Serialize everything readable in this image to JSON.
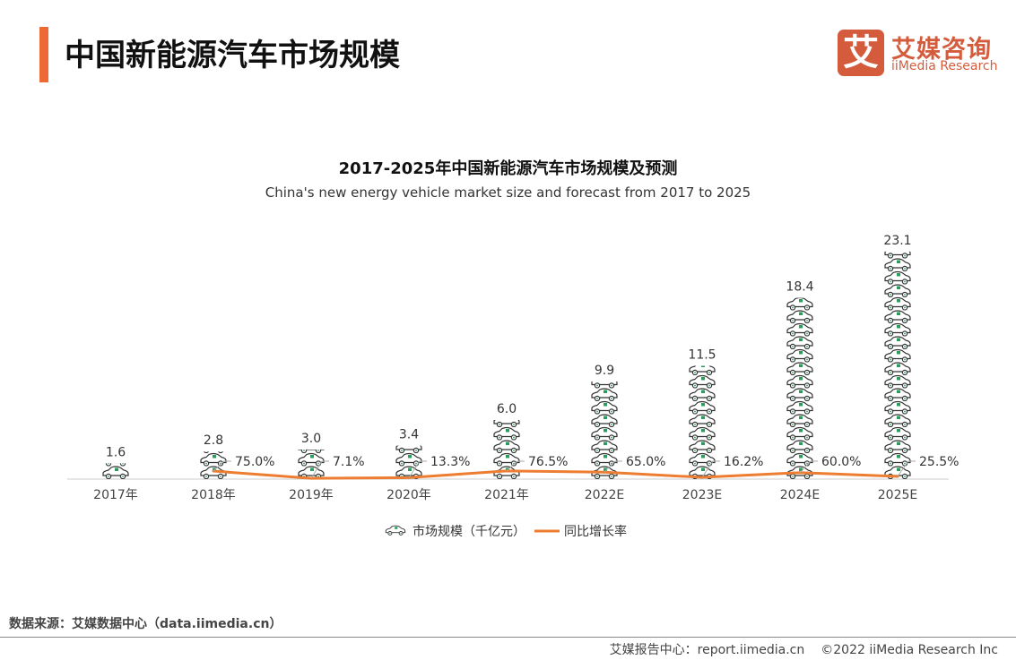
{
  "header": {
    "title": "中国新能源汽车市场规模"
  },
  "logo": {
    "mark": "艾",
    "cn": "艾媒咨询",
    "en": "iiMedia Research"
  },
  "chart_data": {
    "type": "bar",
    "title": "2017-2025年中国新能源汽车市场规模及预测",
    "subtitle": "China's new energy vehicle market size and forecast from 2017 to 2025",
    "categories": [
      "2017年",
      "2018年",
      "2019年",
      "2020年",
      "2021年",
      "2022E",
      "2023E",
      "2024E",
      "2025E"
    ],
    "series": [
      {
        "name": "市场规模（千亿元）",
        "kind": "pictorial-bar",
        "icon": "car-charging-icon",
        "values": [
          1.6,
          2.8,
          3.0,
          3.4,
          6.0,
          9.9,
          11.5,
          18.4,
          23.1
        ],
        "labels": [
          "1.6",
          "2.8",
          "3.0",
          "3.4",
          "6.0",
          "9.9",
          "11.5",
          "18.4",
          "23.1"
        ],
        "color": "#333333"
      },
      {
        "name": "同比增长率",
        "kind": "line",
        "values": [
          null,
          75.0,
          7.1,
          13.3,
          76.5,
          65.0,
          16.2,
          60.0,
          25.5
        ],
        "labels": [
          "",
          "75.0%",
          "7.1%",
          "13.3%",
          "76.5%",
          "65.0%",
          "16.2%",
          "60.0%",
          "25.5%"
        ],
        "color": "#ed7d31"
      }
    ],
    "legend": "bottom",
    "grid": false
  },
  "footer": {
    "source": "数据来源：艾媒数据中心（data.iimedia.cn）",
    "report": "艾媒报告中心：report.iimedia.cn",
    "copyright": "©2022  iiMedia Research  Inc"
  }
}
